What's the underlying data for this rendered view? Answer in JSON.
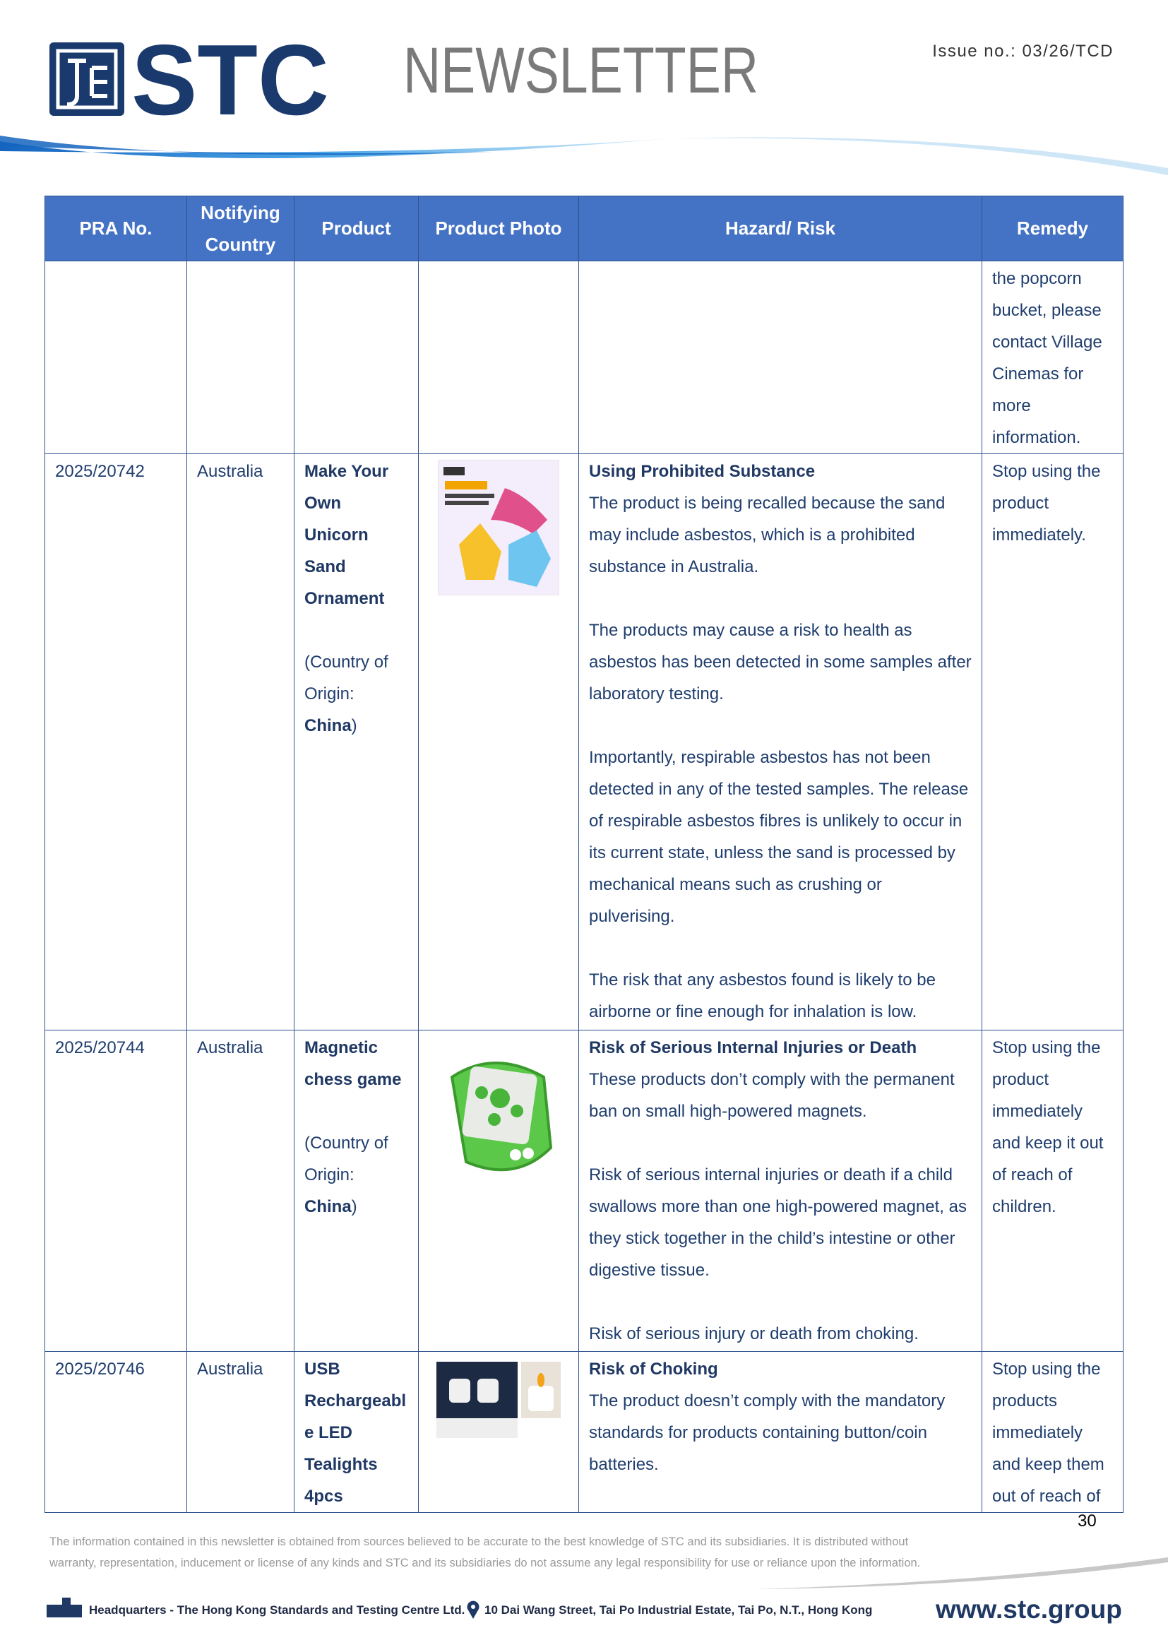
{
  "header": {
    "logo_text": "STC",
    "title": "NEWSLETTER",
    "issue": "Issue no.: 03/26/TCD"
  },
  "table": {
    "columns": [
      "PRA No.",
      "Notifying Country",
      "Product",
      "Product Photo",
      "Hazard/ Risk",
      "Remedy"
    ],
    "rows": [
      {
        "remedy": "the popcorn bucket, please contact Village Cinemas for more information."
      },
      {
        "pra": "2025/20742",
        "country": "Australia",
        "product": {
          "name": "Make Your Own Unicorn Sand Ornament",
          "origin_label": "(Country of Origin:",
          "origin": "China",
          "origin_close": ")"
        },
        "hazard": {
          "heading": "Using Prohibited Substance",
          "paragraphs": [
            "The product is being recalled because the sand may include asbestos, which is a prohibited substance in Australia.",
            "The products may cause a risk to health as asbestos has been detected in some samples after laboratory testing.",
            "Importantly, respirable asbestos has not been detected in any of the tested samples. The release of respirable asbestos fibres is unlikely to occur in its current state, unless the sand is processed by mechanical means such as crushing or pulverising.",
            "The risk that any asbestos found is likely to be airborne or fine enough for inhalation is low."
          ]
        },
        "remedy": "Stop using the product immediately."
      },
      {
        "pra": "2025/20744",
        "country": "Australia",
        "product": {
          "name": "Magnetic chess game",
          "origin_label": "(Country of Origin:",
          "origin": "China",
          "origin_close": ")"
        },
        "hazard": {
          "heading": "Risk of Serious Internal Injuries or Death",
          "paragraphs": [
            "These products don’t comply with the permanent ban on small high-powered magnets.",
            "Risk of serious internal injuries or death if a child swallows more than one high-powered magnet, as they stick together in the child’s intestine or other digestive tissue.",
            "Risk of serious injury or death from choking."
          ]
        },
        "remedy": "Stop using the product immediately and keep it out of reach of children."
      },
      {
        "pra": "2025/20746",
        "country": "Australia",
        "product": {
          "name": "USB Rechargeable LED Tealights 4pcs"
        },
        "hazard": {
          "heading": "Risk of Choking",
          "paragraphs": [
            "The product doesn’t comply with the mandatory standards for products containing button/coin batteries."
          ]
        },
        "remedy": "Stop using the products immediately and keep them out of reach of"
      }
    ]
  },
  "footer": {
    "page_number": "30",
    "disclaimer": "The information contained in this newsletter is obtained from sources believed to be accurate to the best knowledge of STC and its subsidiaries. It is distributed without warranty, representation, inducement or license of any kinds and STC and its subsidiaries do not assume any legal responsibility for use or reliance upon the information.",
    "headquarters": "Headquarters - The Hong Kong Standards and Testing Centre Ltd.",
    "address": "10 Dai Wang Street, Tai Po Industrial Estate, Tai Po, N.T., Hong Kong",
    "website": "www.stc.group"
  }
}
